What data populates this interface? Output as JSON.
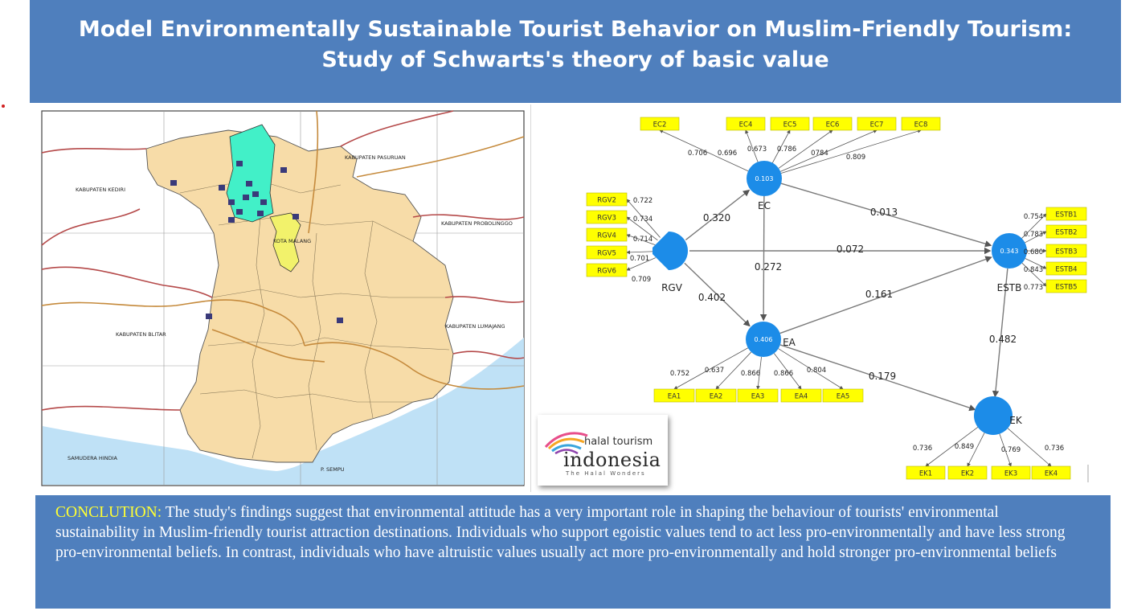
{
  "header": {
    "title_line1": "Model Environmentally Sustainable Tourist Behavior on Muslim-Friendly Tourism:",
    "title_line2": "Study of Schwarts's theory of basic value"
  },
  "map": {
    "regions": [
      "KABUPATEN KEDIRI",
      "KABUPATEN PASURUAN",
      "KABUPATEN PROBOLINGGO",
      "KABUPATEN BLITAR",
      "KABUPATEN LUMAJANG",
      "KOTA MALANG",
      "SAMUDERA HINDIA",
      "P. SEMPU"
    ],
    "colors": {
      "land": "#f7dca8",
      "sea": "#bfe1f6",
      "highlight": "#42f0c8",
      "city": "#f2f26b",
      "border": "#b54a4a",
      "road": "#c58a3c"
    }
  },
  "diagram": {
    "colors": {
      "node": "#1c8ce8",
      "indicator": "#ffff00"
    },
    "nodes": {
      "EC": {
        "label": "EC",
        "r2": "0.103"
      },
      "RGV": {
        "label": "RGV",
        "r2": ""
      },
      "EA": {
        "label": "EA",
        "r2": "0.406"
      },
      "ESTB": {
        "label": "ESTB",
        "r2": "0.343"
      },
      "EK": {
        "label": "EK",
        "r2": ""
      }
    },
    "indicators": {
      "EC": [
        {
          "name": "EC2",
          "loading": "0.706"
        },
        {
          "name": "EC4",
          "loading": "0.696"
        },
        {
          "name": "EC5",
          "loading": "0.673"
        },
        {
          "name": "EC6",
          "loading": "0.786"
        },
        {
          "name": "EC7",
          "loading": "0784"
        },
        {
          "name": "EC8",
          "loading": "0.809"
        }
      ],
      "RGV": [
        {
          "name": "RGV2",
          "loading": "0.722"
        },
        {
          "name": "RGV3",
          "loading": "0.734"
        },
        {
          "name": "RGV4",
          "loading": "0.714"
        },
        {
          "name": "RGV5",
          "loading": "0.701"
        },
        {
          "name": "RGV6",
          "loading": "0.709"
        }
      ],
      "EA": [
        {
          "name": "EA1",
          "loading": "0.752"
        },
        {
          "name": "EA2",
          "loading": "0.637"
        },
        {
          "name": "EA3",
          "loading": "0.866"
        },
        {
          "name": "EA4",
          "loading": "0.866"
        },
        {
          "name": "EA5",
          "loading": "0.804"
        }
      ],
      "ESTB": [
        {
          "name": "ESTB1",
          "loading": "0.754"
        },
        {
          "name": "ESTB2",
          "loading": "0.783"
        },
        {
          "name": "ESTB3",
          "loading": "0.680"
        },
        {
          "name": "ESTB4",
          "loading": "0.843"
        },
        {
          "name": "ESTB5",
          "loading": "0.773"
        }
      ],
      "EK": [
        {
          "name": "EK1",
          "loading": "0.736"
        },
        {
          "name": "EK2",
          "loading": "0.849"
        },
        {
          "name": "EK3",
          "loading": "0.769"
        },
        {
          "name": "EK4",
          "loading": "0.736"
        }
      ]
    },
    "paths": [
      {
        "from": "RGV",
        "to": "EC",
        "coef": "0.320"
      },
      {
        "from": "EC",
        "to": "ESTB",
        "coef": "0.013"
      },
      {
        "from": "RGV",
        "to": "ESTB",
        "coef": "0.072"
      },
      {
        "from": "EC",
        "to": "EA",
        "coef": "0.272"
      },
      {
        "from": "RGV",
        "to": "EA",
        "coef": "0.402"
      },
      {
        "from": "EA",
        "to": "ESTB",
        "coef": "0.161"
      },
      {
        "from": "EA",
        "to": "EK",
        "coef": "0.179"
      },
      {
        "from": "ESTB",
        "to": "EK",
        "coef": "0.482"
      }
    ]
  },
  "logo": {
    "line1": "halal tourism",
    "line2": "indonesia",
    "line3": "The Halal Wonders"
  },
  "conclusion": {
    "label": "CONCLUTION:",
    "text": " The study's findings suggest that environmental attitude has a very important role in shaping the behaviour of tourists' environmental sustainability in Muslim-friendly tourist attraction destinations. Individuals who support egoistic values tend to act less pro-environmentally and have less strong pro-environmental beliefs. In contrast, individuals who have altruistic values usually act more pro-environmentally and hold stronger pro-environmental beliefs"
  }
}
